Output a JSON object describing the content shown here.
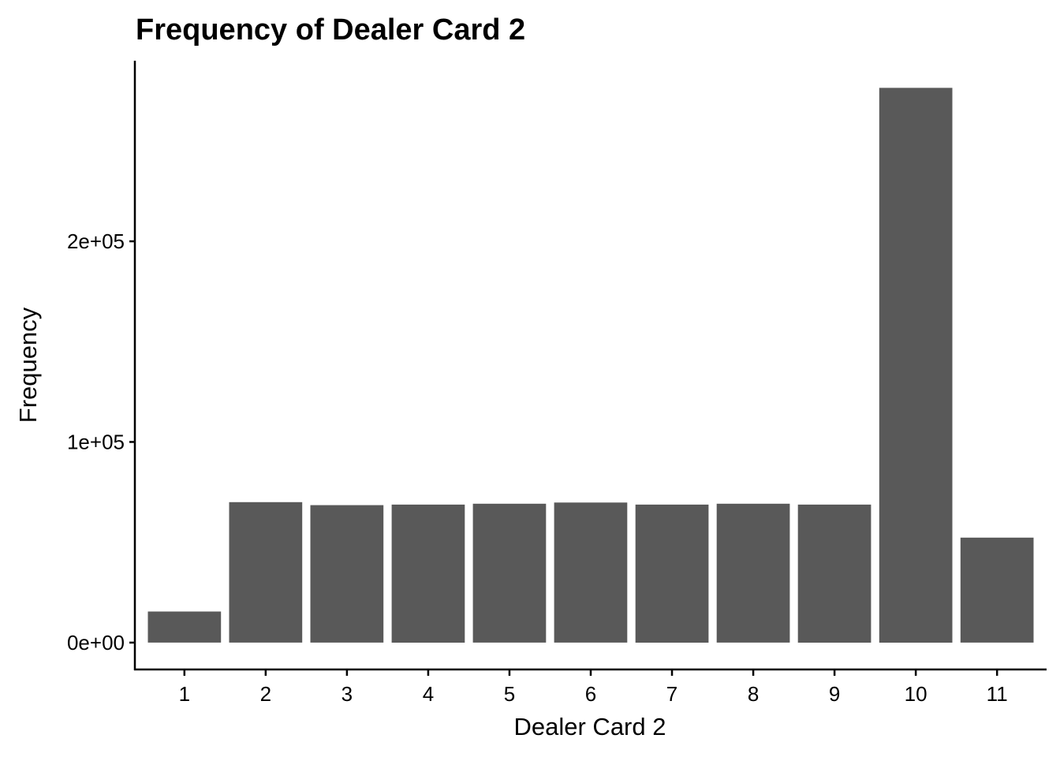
{
  "chart_data": {
    "type": "bar",
    "title": "Frequency of Dealer Card 2",
    "xlabel": "Dealer Card 2",
    "ylabel": "Frequency",
    "categories": [
      "1",
      "2",
      "3",
      "4",
      "5",
      "6",
      "7",
      "8",
      "9",
      "10",
      "11"
    ],
    "values": [
      15500,
      70000,
      68500,
      68800,
      69200,
      69800,
      68800,
      69200,
      68800,
      276500,
      52300
    ],
    "yticks": [
      0,
      100000,
      200000
    ],
    "ytick_labels": [
      "0e+00",
      "1e+05",
      "2e+05"
    ],
    "ylim": [
      -13000,
      290000
    ],
    "grid": false,
    "bar_color": "#595959"
  }
}
